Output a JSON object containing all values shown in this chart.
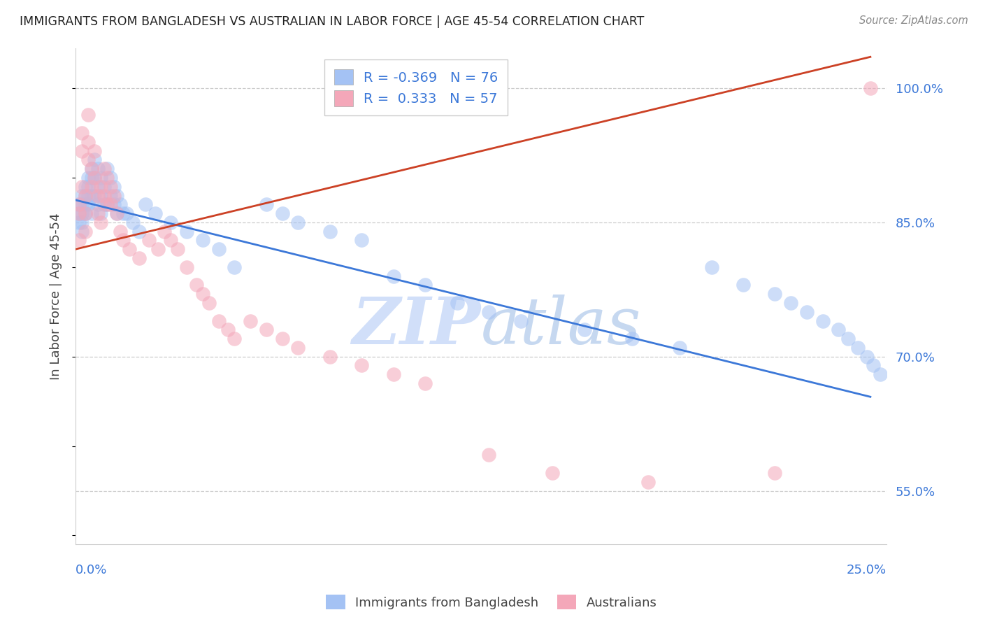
{
  "title": "IMMIGRANTS FROM BANGLADESH VS AUSTRALIAN IN LABOR FORCE | AGE 45-54 CORRELATION CHART",
  "source": "Source: ZipAtlas.com",
  "ylabel": "In Labor Force | Age 45-54",
  "y_ticks": [
    0.55,
    0.7,
    0.85,
    1.0
  ],
  "y_tick_labels": [
    "55.0%",
    "70.0%",
    "85.0%",
    "100.0%"
  ],
  "xlim": [
    0.0,
    0.255
  ],
  "ylim": [
    0.49,
    1.045
  ],
  "legend_R_blue": "-0.369",
  "legend_N_blue": "76",
  "legend_R_pink": "0.333",
  "legend_N_pink": "57",
  "blue_color": "#a4c2f4",
  "pink_color": "#f4a7b9",
  "blue_line_color": "#3c78d8",
  "pink_line_color": "#cc4125",
  "watermark_color": "#c9daf8",
  "blue_line_x0": 0.0,
  "blue_line_y0": 0.875,
  "blue_line_x1": 0.25,
  "blue_line_y1": 0.655,
  "pink_line_x0": 0.0,
  "pink_line_y0": 0.82,
  "pink_line_x1": 0.25,
  "pink_line_y1": 1.035,
  "blue_scatter_x": [
    0.001,
    0.001,
    0.001,
    0.002,
    0.002,
    0.002,
    0.002,
    0.002,
    0.003,
    0.003,
    0.003,
    0.003,
    0.004,
    0.004,
    0.004,
    0.004,
    0.005,
    0.005,
    0.005,
    0.005,
    0.006,
    0.006,
    0.006,
    0.007,
    0.007,
    0.007,
    0.008,
    0.008,
    0.008,
    0.009,
    0.009,
    0.01,
    0.01,
    0.011,
    0.011,
    0.012,
    0.012,
    0.013,
    0.013,
    0.014,
    0.015,
    0.016,
    0.018,
    0.02,
    0.022,
    0.025,
    0.03,
    0.035,
    0.04,
    0.045,
    0.05,
    0.06,
    0.065,
    0.07,
    0.08,
    0.09,
    0.1,
    0.11,
    0.12,
    0.13,
    0.14,
    0.16,
    0.175,
    0.19,
    0.2,
    0.21,
    0.22,
    0.225,
    0.23,
    0.235,
    0.24,
    0.243,
    0.246,
    0.249,
    0.251,
    0.253
  ],
  "blue_scatter_y": [
    0.87,
    0.86,
    0.85,
    0.88,
    0.87,
    0.86,
    0.85,
    0.84,
    0.89,
    0.88,
    0.87,
    0.86,
    0.9,
    0.89,
    0.88,
    0.87,
    0.91,
    0.9,
    0.88,
    0.86,
    0.92,
    0.9,
    0.88,
    0.91,
    0.89,
    0.87,
    0.9,
    0.88,
    0.86,
    0.89,
    0.87,
    0.91,
    0.87,
    0.9,
    0.88,
    0.89,
    0.87,
    0.88,
    0.86,
    0.87,
    0.86,
    0.86,
    0.85,
    0.84,
    0.87,
    0.86,
    0.85,
    0.84,
    0.83,
    0.82,
    0.8,
    0.87,
    0.86,
    0.85,
    0.84,
    0.83,
    0.79,
    0.78,
    0.76,
    0.75,
    0.74,
    0.73,
    0.72,
    0.71,
    0.8,
    0.78,
    0.77,
    0.76,
    0.75,
    0.74,
    0.73,
    0.72,
    0.71,
    0.7,
    0.69,
    0.68
  ],
  "pink_scatter_x": [
    0.001,
    0.001,
    0.001,
    0.002,
    0.002,
    0.002,
    0.003,
    0.003,
    0.003,
    0.004,
    0.004,
    0.004,
    0.005,
    0.005,
    0.006,
    0.006,
    0.007,
    0.007,
    0.008,
    0.008,
    0.009,
    0.009,
    0.01,
    0.01,
    0.011,
    0.011,
    0.012,
    0.013,
    0.014,
    0.015,
    0.017,
    0.02,
    0.023,
    0.026,
    0.028,
    0.03,
    0.032,
    0.035,
    0.038,
    0.04,
    0.042,
    0.045,
    0.048,
    0.05,
    0.055,
    0.06,
    0.065,
    0.07,
    0.08,
    0.09,
    0.1,
    0.11,
    0.13,
    0.15,
    0.18,
    0.22,
    0.25
  ],
  "pink_scatter_y": [
    0.87,
    0.86,
    0.83,
    0.95,
    0.93,
    0.89,
    0.88,
    0.86,
    0.84,
    0.97,
    0.94,
    0.92,
    0.91,
    0.89,
    0.93,
    0.9,
    0.88,
    0.86,
    0.89,
    0.85,
    0.91,
    0.88,
    0.9,
    0.87,
    0.89,
    0.87,
    0.88,
    0.86,
    0.84,
    0.83,
    0.82,
    0.81,
    0.83,
    0.82,
    0.84,
    0.83,
    0.82,
    0.8,
    0.78,
    0.77,
    0.76,
    0.74,
    0.73,
    0.72,
    0.74,
    0.73,
    0.72,
    0.71,
    0.7,
    0.69,
    0.68,
    0.67,
    0.59,
    0.57,
    0.56,
    0.57,
    1.0
  ]
}
